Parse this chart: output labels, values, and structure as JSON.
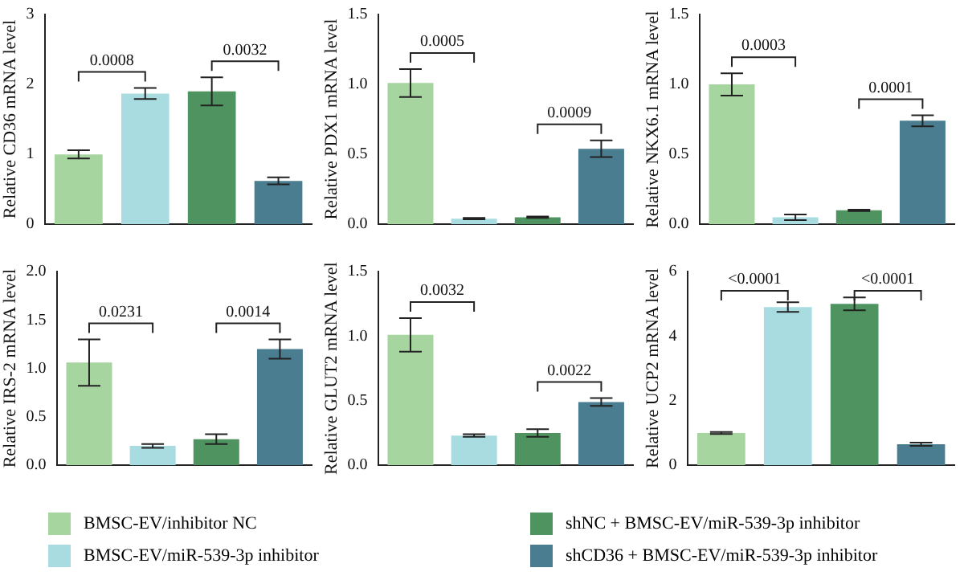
{
  "chart_data": [
    {
      "type": "bar",
      "ylabel": "Relative CD36 mRNA level",
      "categories": [
        null,
        null,
        null,
        null
      ],
      "stacked": true,
      "ylim": [
        0,
        3
      ],
      "yticks": [
        0,
        1,
        2,
        3
      ],
      "grid": false,
      "legend": "bottom",
      "series": [
        {
          "name": "BMSC-EV/inhibitor NC",
          "color": "#a6d5a0",
          "values": [
            1.0,
            null,
            null,
            null
          ],
          "errors": [
            0.06,
            null,
            null,
            null
          ]
        },
        {
          "name": "BMSC-EV/miR-539-3p inhibitor",
          "color": "#a8dce0",
          "values": [
            null,
            1.87,
            null,
            null
          ],
          "errors": [
            null,
            0.08,
            null,
            null
          ]
        },
        {
          "name": "shNC + BMSC-EV/miR-539-3p inhibitor",
          "color": "#4f9460",
          "values": [
            null,
            null,
            1.9,
            null
          ],
          "errors": [
            null,
            null,
            0.2,
            null
          ]
        },
        {
          "name": "shCD36 + BMSC-EV/miR-539-3p inhibitor",
          "color": "#4a7d8f",
          "values": [
            null,
            null,
            null,
            0.62
          ],
          "errors": [
            null,
            null,
            null,
            0.05
          ]
        }
      ],
      "annotations": [
        "0.0008",
        "0.0032"
      ]
    },
    {
      "type": "bar",
      "ylabel": "Relative PDX1 mRNA level",
      "categories": [
        null,
        null,
        null,
        null
      ],
      "stacked": true,
      "ylim": [
        0,
        1.5
      ],
      "yticks": [
        {
          "value": 0,
          "label": "0.0"
        },
        0.5,
        {
          "value": 1,
          "label": "1.0"
        },
        1.5
      ],
      "grid": false,
      "series": [
        {
          "color": "#a6d5a0",
          "values": [
            1.01,
            null,
            null,
            null
          ],
          "errors": [
            0.1,
            null,
            null,
            null
          ]
        },
        {
          "color": "#a8dce0",
          "values": [
            null,
            0.04,
            null,
            null
          ],
          "errors": [
            null,
            0.005,
            null,
            null
          ]
        },
        {
          "color": "#4f9460",
          "values": [
            null,
            null,
            0.05,
            null
          ],
          "errors": [
            null,
            null,
            0.005,
            null
          ]
        },
        {
          "color": "#4a7d8f",
          "values": [
            null,
            null,
            null,
            0.54
          ],
          "errors": [
            null,
            null,
            null,
            0.06
          ]
        }
      ],
      "annotations": [
        "0.0005",
        "0.0009"
      ]
    },
    {
      "type": "bar",
      "ylabel": "Relative NKX6.1 mRNA level",
      "categories": [
        null,
        null,
        null,
        null
      ],
      "stacked": true,
      "ylim": [
        0,
        1.5
      ],
      "yticks": [
        {
          "value": 0,
          "label": "0.0"
        },
        0.5,
        {
          "value": 1,
          "label": "1.0"
        },
        1.5
      ],
      "grid": false,
      "series": [
        {
          "color": "#a6d5a0",
          "values": [
            1.0,
            null,
            null,
            null
          ],
          "errors": [
            0.08,
            null,
            null,
            null
          ]
        },
        {
          "color": "#a8dce0",
          "values": [
            null,
            0.05,
            null,
            null
          ],
          "errors": [
            null,
            0.02,
            null,
            null
          ]
        },
        {
          "color": "#4f9460",
          "values": [
            null,
            null,
            0.1,
            null
          ],
          "errors": [
            null,
            null,
            0.005,
            null
          ]
        },
        {
          "color": "#4a7d8f",
          "values": [
            null,
            null,
            null,
            0.74
          ],
          "errors": [
            null,
            null,
            null,
            0.04
          ]
        }
      ],
      "annotations": [
        "0.0003",
        "0.0001"
      ]
    },
    {
      "type": "bar",
      "ylabel": "Relative IRS-2 mRNA level",
      "categories": [
        null,
        null,
        null,
        null
      ],
      "stacked": true,
      "ylim": [
        0,
        2
      ],
      "yticks": [
        {
          "value": 0,
          "label": "0.0"
        },
        0.5,
        {
          "value": 1,
          "label": "1.0"
        },
        1.5,
        {
          "value": 2,
          "label": "2.0"
        }
      ],
      "grid": false,
      "series": [
        {
          "color": "#a6d5a0",
          "values": [
            1.06,
            null,
            null,
            null
          ],
          "errors": [
            0.24,
            null,
            null,
            null
          ]
        },
        {
          "color": "#a8dce0",
          "values": [
            null,
            0.2,
            null,
            null
          ],
          "errors": [
            null,
            0.02,
            null,
            null
          ]
        },
        {
          "color": "#4f9460",
          "values": [
            null,
            null,
            0.27,
            null
          ],
          "errors": [
            null,
            null,
            0.05,
            null
          ]
        },
        {
          "color": "#4a7d8f",
          "values": [
            null,
            null,
            null,
            1.2
          ],
          "errors": [
            null,
            null,
            null,
            0.1
          ]
        }
      ],
      "annotations": [
        "0.0231",
        "0.0014"
      ]
    },
    {
      "type": "bar",
      "ylabel": "Relative GLUT2 mRNA level",
      "categories": [
        null,
        null,
        null,
        null
      ],
      "stacked": true,
      "ylim": [
        0,
        1.5
      ],
      "yticks": [
        {
          "value": 0,
          "label": "0.0"
        },
        0.5,
        {
          "value": 1,
          "label": "1.0"
        },
        1.5
      ],
      "grid": false,
      "series": [
        {
          "color": "#a6d5a0",
          "values": [
            1.01,
            null,
            null,
            null
          ],
          "errors": [
            0.13,
            null,
            null,
            null
          ]
        },
        {
          "color": "#a8dce0",
          "values": [
            null,
            0.23,
            null,
            null
          ],
          "errors": [
            null,
            0.01,
            null,
            null
          ]
        },
        {
          "color": "#4f9460",
          "values": [
            null,
            null,
            0.25,
            null
          ],
          "errors": [
            null,
            null,
            0.03,
            null
          ]
        },
        {
          "color": "#4a7d8f",
          "values": [
            null,
            null,
            null,
            0.49
          ],
          "errors": [
            null,
            null,
            null,
            0.03
          ]
        }
      ],
      "annotations": [
        "0.0032",
        "0.0022"
      ]
    },
    {
      "type": "bar",
      "ylabel": "Relative UCP2 mRNA level",
      "categories": [
        null,
        null,
        null,
        null
      ],
      "stacked": true,
      "ylim": [
        0,
        6
      ],
      "yticks": [
        0,
        2,
        4,
        6
      ],
      "grid": false,
      "series": [
        {
          "color": "#a6d5a0",
          "values": [
            1.0,
            null,
            null,
            null
          ],
          "errors": [
            0.03,
            null,
            null,
            null
          ]
        },
        {
          "color": "#a8dce0",
          "values": [
            null,
            4.9,
            null,
            null
          ],
          "errors": [
            null,
            0.15,
            null,
            null
          ]
        },
        {
          "color": "#4f9460",
          "values": [
            null,
            null,
            5.0,
            null
          ],
          "errors": [
            null,
            null,
            0.2,
            null
          ]
        },
        {
          "color": "#4a7d8f",
          "values": [
            null,
            null,
            null,
            0.65
          ],
          "errors": [
            null,
            null,
            null,
            0.05
          ]
        }
      ],
      "annotations": [
        "<0.0001",
        "<0.0001"
      ]
    }
  ]
}
